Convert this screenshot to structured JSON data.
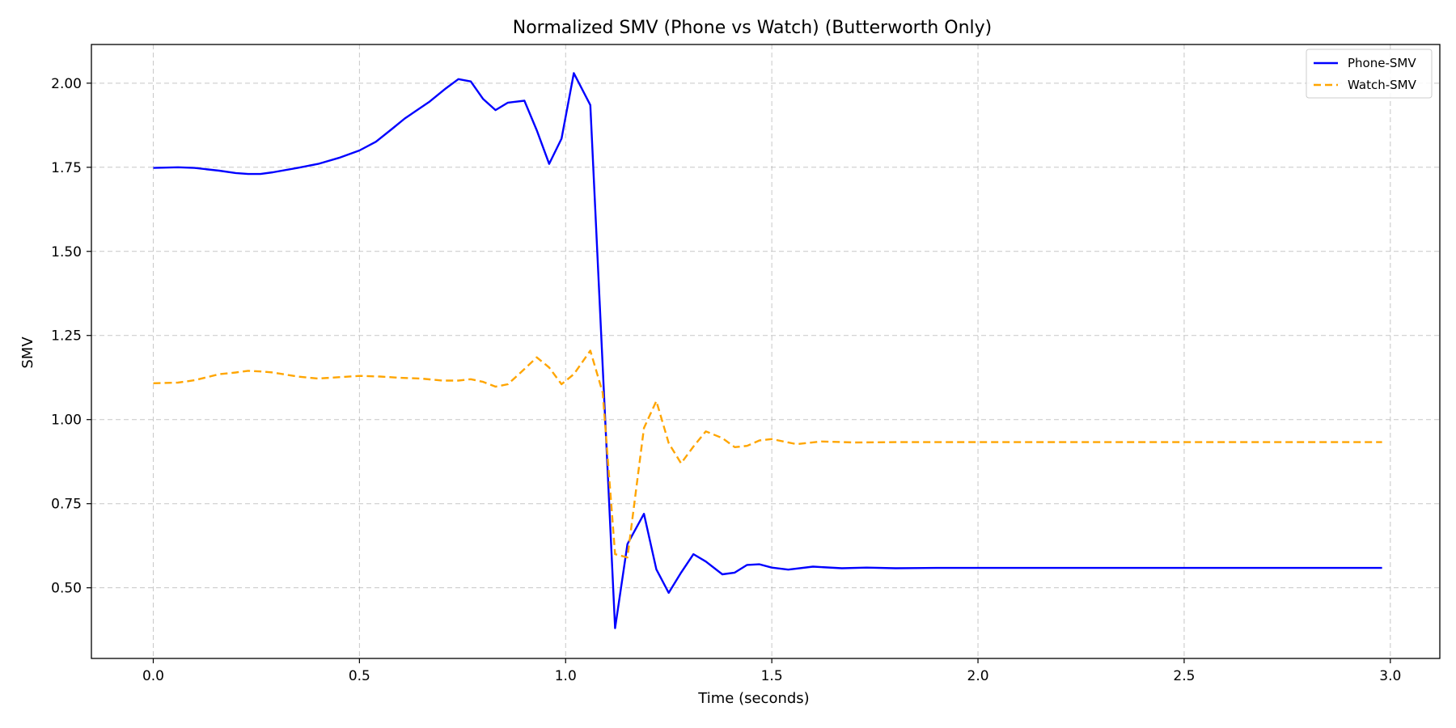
{
  "chart_data": {
    "type": "line",
    "title": "Normalized SMV (Phone vs Watch) (Butterworth Only)",
    "xlabel": "Time (seconds)",
    "ylabel": "SMV",
    "xlim": [
      -0.15,
      3.12
    ],
    "ylim": [
      0.29,
      2.115
    ],
    "xticks": [
      0.0,
      0.5,
      1.0,
      1.5,
      2.0,
      2.5,
      3.0
    ],
    "xtick_labels": [
      "0.0",
      "0.5",
      "1.0",
      "1.5",
      "2.0",
      "2.5",
      "3.0"
    ],
    "yticks": [
      0.5,
      0.75,
      1.0,
      1.25,
      1.5,
      1.75,
      2.0
    ],
    "ytick_labels": [
      "0.50",
      "0.75",
      "1.00",
      "1.25",
      "1.50",
      "1.75",
      "2.00"
    ],
    "grid": true,
    "legend_position": "top-right",
    "series": [
      {
        "name": "Phone-SMV",
        "color": "#0000ff",
        "dash": "solid",
        "x": [
          0.0,
          0.06,
          0.1,
          0.16,
          0.2,
          0.23,
          0.26,
          0.29,
          0.35,
          0.4,
          0.45,
          0.5,
          0.54,
          0.58,
          0.61,
          0.67,
          0.71,
          0.74,
          0.77,
          0.8,
          0.83,
          0.86,
          0.9,
          0.93,
          0.96,
          0.99,
          1.02,
          1.06,
          1.12,
          1.15,
          1.19,
          1.22,
          1.25,
          1.28,
          1.31,
          1.34,
          1.38,
          1.41,
          1.44,
          1.47,
          1.5,
          1.54,
          1.6,
          1.67,
          1.73,
          1.8,
          1.9,
          2.0,
          2.5,
          2.98
        ],
        "y": [
          1.748,
          1.75,
          1.748,
          1.74,
          1.733,
          1.73,
          1.73,
          1.735,
          1.748,
          1.76,
          1.778,
          1.8,
          1.826,
          1.865,
          1.895,
          1.945,
          1.985,
          2.012,
          2.005,
          1.953,
          1.92,
          1.942,
          1.948,
          1.86,
          1.76,
          1.835,
          2.03,
          1.935,
          0.38,
          0.63,
          0.72,
          0.555,
          0.485,
          0.545,
          0.6,
          0.578,
          0.54,
          0.545,
          0.568,
          0.57,
          0.56,
          0.554,
          0.563,
          0.558,
          0.56,
          0.558,
          0.559,
          0.559,
          0.559,
          0.559
        ]
      },
      {
        "name": "Watch-SMV",
        "color": "#ffa500",
        "dash": "dashed",
        "x": [
          0.0,
          0.06,
          0.1,
          0.16,
          0.2,
          0.23,
          0.26,
          0.29,
          0.35,
          0.4,
          0.45,
          0.5,
          0.55,
          0.6,
          0.65,
          0.7,
          0.74,
          0.77,
          0.8,
          0.83,
          0.86,
          0.9,
          0.93,
          0.96,
          0.99,
          1.02,
          1.06,
          1.09,
          1.12,
          1.15,
          1.19,
          1.22,
          1.25,
          1.28,
          1.31,
          1.34,
          1.38,
          1.41,
          1.44,
          1.47,
          1.5,
          1.56,
          1.62,
          1.7,
          1.8,
          1.9,
          2.0,
          2.5,
          2.98
        ],
        "y": [
          1.108,
          1.11,
          1.117,
          1.135,
          1.14,
          1.145,
          1.143,
          1.14,
          1.128,
          1.122,
          1.126,
          1.13,
          1.128,
          1.124,
          1.122,
          1.116,
          1.116,
          1.12,
          1.112,
          1.098,
          1.105,
          1.15,
          1.185,
          1.155,
          1.105,
          1.135,
          1.205,
          1.08,
          0.6,
          0.59,
          0.975,
          1.055,
          0.93,
          0.87,
          0.92,
          0.965,
          0.945,
          0.918,
          0.922,
          0.938,
          0.942,
          0.927,
          0.935,
          0.932,
          0.933,
          0.933,
          0.933,
          0.933,
          0.933
        ]
      }
    ]
  }
}
